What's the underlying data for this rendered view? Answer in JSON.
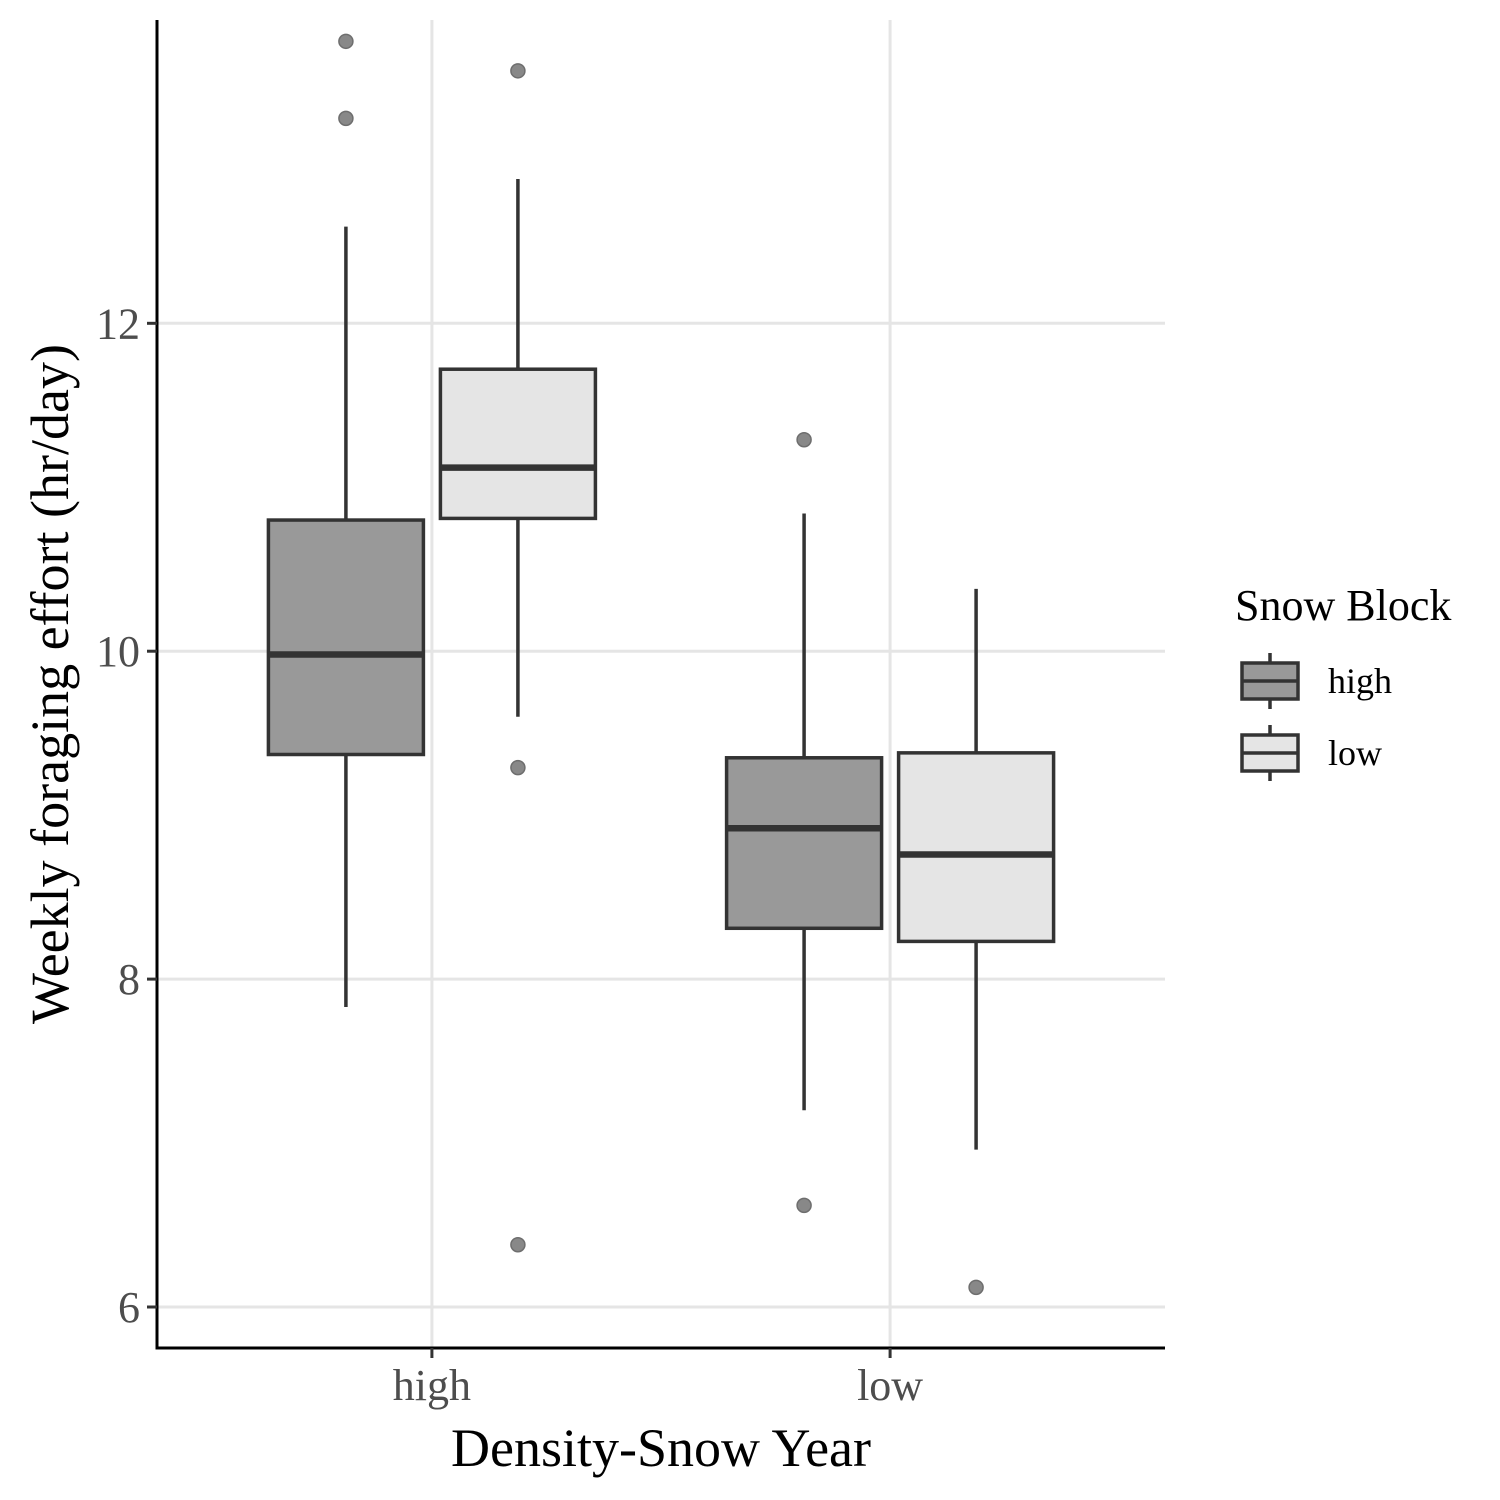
{
  "chart_data": {
    "type": "boxplot",
    "xlabel": "Density-Snow Year",
    "ylabel": "Weekly foraging effort (hr/day)",
    "ylim": [
      5.75,
      13.85
    ],
    "yticks": [
      6,
      8,
      10,
      12
    ],
    "ytick_labels": [
      "6",
      "8",
      "10",
      "12"
    ],
    "categories": [
      "high",
      "low"
    ],
    "grid": {
      "major_x": true,
      "major_y": true
    },
    "legend": {
      "title": "Snow Block",
      "position": "right",
      "entries": [
        {
          "label": "high",
          "fill": "#999999"
        },
        {
          "label": "low",
          "fill": "#e5e5e5"
        }
      ]
    },
    "series": [
      {
        "name": "high",
        "fill": "#999999",
        "boxes": [
          {
            "category": "high",
            "q1": 9.37,
            "median": 9.98,
            "q3": 10.8,
            "whisker_low": 7.83,
            "whisker_high": 12.59,
            "outliers": [
              13.72,
              13.25
            ]
          },
          {
            "category": "low",
            "q1": 8.31,
            "median": 8.92,
            "q3": 9.35,
            "whisker_low": 7.2,
            "whisker_high": 10.84,
            "outliers": [
              11.29,
              6.62
            ]
          }
        ]
      },
      {
        "name": "low",
        "fill": "#e5e5e5",
        "boxes": [
          {
            "category": "high",
            "q1": 10.81,
            "median": 11.12,
            "q3": 11.72,
            "whisker_low": 9.6,
            "whisker_high": 12.88,
            "outliers": [
              13.54,
              9.29,
              6.38
            ]
          },
          {
            "category": "low",
            "q1": 8.23,
            "median": 8.76,
            "q3": 9.38,
            "whisker_low": 6.96,
            "whisker_high": 10.38,
            "outliers": [
              6.12
            ]
          }
        ]
      }
    ]
  },
  "colors": {
    "grid": "#e5e5e5",
    "box_line": "#333333",
    "outlier_fill": "#888888",
    "outlier_stroke": "#6e6e6e",
    "axis": "#000000",
    "tick_text": "#4d4d4d"
  }
}
